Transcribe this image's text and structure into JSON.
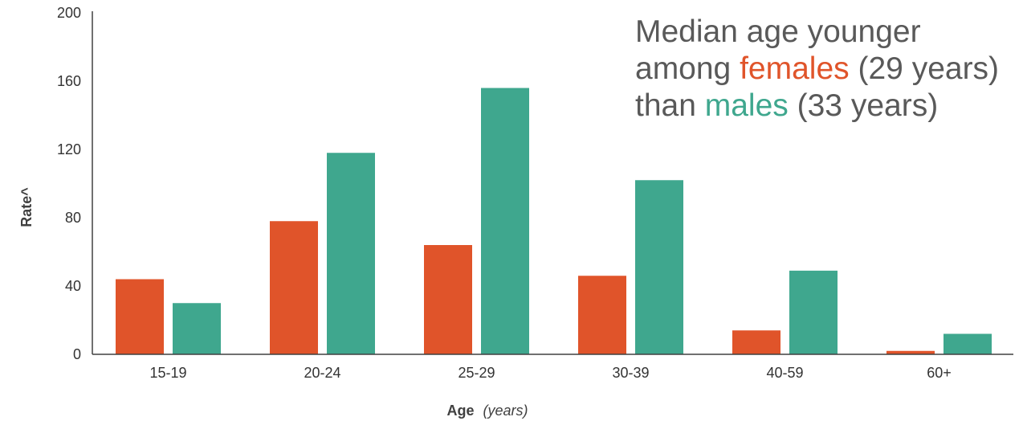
{
  "annotation": {
    "line1": "Median age younger",
    "line2_pre": "among ",
    "line2_female": "females",
    "line2_post": " (29 years)",
    "line3_pre": "than ",
    "line3_male": "males",
    "line3_post": " (33 years)"
  },
  "colors": {
    "female": "#E0542A",
    "male": "#3FA78E",
    "axis": "#404040",
    "text": "#333333"
  },
  "chart_data": {
    "type": "bar",
    "title": "",
    "xlabel": "Age",
    "xlabel_suffix": "(years)",
    "ylabel": "Rate^",
    "ylim": [
      0,
      200
    ],
    "yticks": [
      0,
      40,
      80,
      120,
      160,
      200
    ],
    "categories": [
      "15-19",
      "20-24",
      "25-29",
      "30-39",
      "40-59",
      "60+"
    ],
    "series": [
      {
        "key": "female",
        "values": [
          44,
          78,
          64,
          46,
          14,
          2
        ]
      },
      {
        "key": "male",
        "values": [
          30,
          118,
          156,
          102,
          49,
          12
        ]
      }
    ],
    "grid": false,
    "legend": "none"
  }
}
